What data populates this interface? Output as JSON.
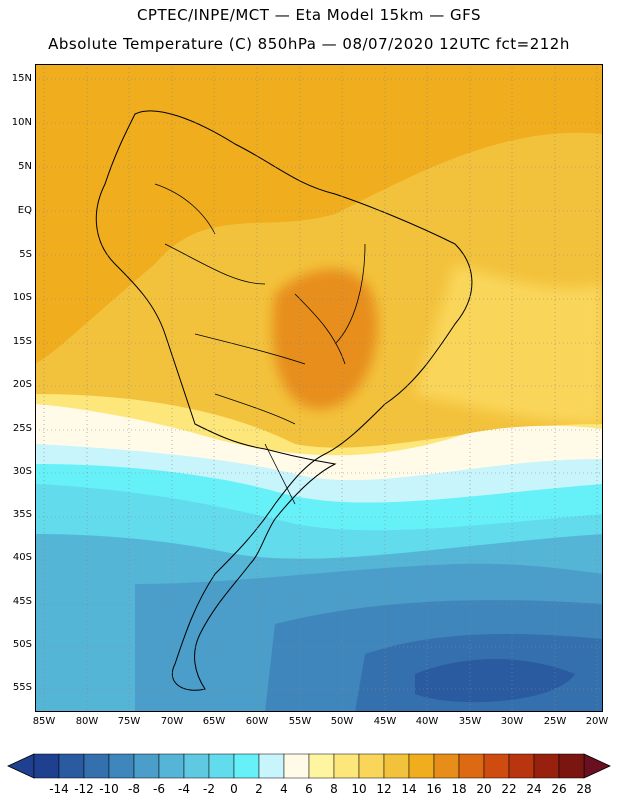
{
  "header": {
    "line1": "CPTEC/INPE/MCT —  Eta Model 15km — GFS",
    "line2": "Absolute Temperature (C) 850hPa — 08/07/2020 12UTC fct=212h"
  },
  "axes": {
    "latitudes": [
      "15N",
      "10N",
      "5N",
      "EQ",
      "5S",
      "10S",
      "15S",
      "20S",
      "25S",
      "30S",
      "35S",
      "40S",
      "45S",
      "50S",
      "55S"
    ],
    "longitudes": [
      "85W",
      "80W",
      "75W",
      "70W",
      "65W",
      "60W",
      "55W",
      "50W",
      "45W",
      "40W",
      "35W",
      "30W",
      "25W",
      "20W"
    ]
  },
  "colorbar": {
    "labels": [
      "-14",
      "-12",
      "-10",
      "-8",
      "-6",
      "-4",
      "-2",
      "0",
      "2",
      "4",
      "6",
      "8",
      "10",
      "12",
      "14",
      "16",
      "18",
      "20",
      "22",
      "24",
      "26",
      "28"
    ],
    "colors": [
      "#1f3f8f",
      "#2a5aa0",
      "#3470ae",
      "#3f86bd",
      "#4a9ec9",
      "#55b5d6",
      "#5fc9e2",
      "#62dbec",
      "#66f0f8",
      "#c8f4fb",
      "#fffbe8",
      "#fff5a0",
      "#fde77a",
      "#f9d65a",
      "#f3c23c",
      "#f0ad1e",
      "#e78e1a",
      "#dd6a12",
      "#cf4c10",
      "#b8350f",
      "#98210e",
      "#7a160f"
    ]
  }
}
